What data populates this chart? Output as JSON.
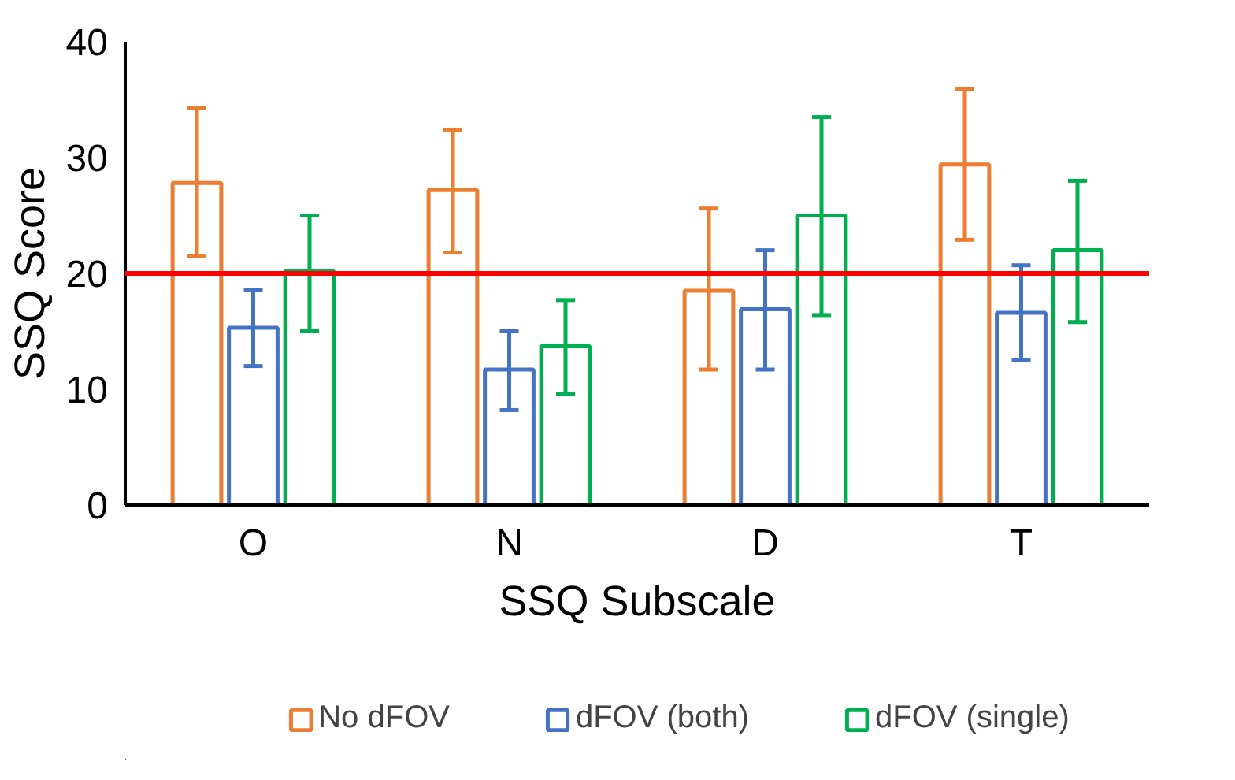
{
  "chart_data": {
    "type": "bar",
    "xlabel": "SSQ Subscale",
    "ylabel": "SSQ Score",
    "categories": [
      "O",
      "N",
      "D",
      "T"
    ],
    "series": [
      {
        "name": "No dFOV",
        "color": "#ed7d31",
        "values": [
          27.8,
          27.2,
          18.5,
          29.4
        ],
        "errors": [
          [
            21.5,
            34.3
          ],
          [
            21.8,
            32.4
          ],
          [
            11.7,
            25.6
          ],
          [
            22.9,
            35.9
          ]
        ]
      },
      {
        "name": "dFOV (both)",
        "color": "#4472c4",
        "values": [
          15.3,
          11.7,
          16.9,
          16.6
        ],
        "errors": [
          [
            12.0,
            18.6
          ],
          [
            8.2,
            15.0
          ],
          [
            11.7,
            22.0
          ],
          [
            12.5,
            20.7
          ]
        ]
      },
      {
        "name": "dFOV (single)",
        "color": "#00b050",
        "values": [
          20.2,
          13.7,
          25.0,
          22.0
        ],
        "errors": [
          [
            15.0,
            25.0
          ],
          [
            9.6,
            17.7
          ],
          [
            16.4,
            33.5
          ],
          [
            15.8,
            28.0
          ]
        ]
      }
    ],
    "ylim": [
      0,
      40
    ],
    "yticks": [
      0,
      10,
      20,
      30,
      40
    ],
    "grid": false,
    "legend": "bottom",
    "ref_lines": [
      {
        "axis": "y",
        "value": 20,
        "color": "#ff0000"
      }
    ]
  }
}
